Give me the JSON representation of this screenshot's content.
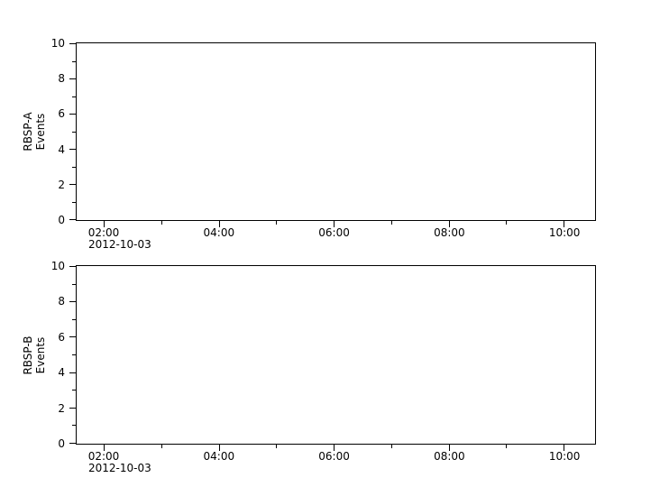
{
  "figure": {
    "background_color": "#ffffff",
    "axis_color": "#000000",
    "text_color": "#000000",
    "date_label": "2012-10-03"
  },
  "chart_data": [
    {
      "type": "line",
      "panel": "RBSP-A",
      "title": "",
      "xlabel": "",
      "ylabel": "RBSP-A Events",
      "ylabel_lines": [
        "RBSP-A",
        "Events"
      ],
      "grid": false,
      "series": [],
      "x_axis": {
        "unit": "time of day (HH:MM)",
        "min_hours": 1.53,
        "max_hours": 10.53,
        "major_ticks": [
          {
            "hours": 2,
            "label": "02:00"
          },
          {
            "hours": 4,
            "label": "04:00"
          },
          {
            "hours": 6,
            "label": "06:00"
          },
          {
            "hours": 8,
            "label": "08:00"
          },
          {
            "hours": 10,
            "label": "10:00"
          }
        ],
        "minor_tick_hours": [
          3,
          5,
          7,
          9
        ],
        "date_label": "2012-10-03",
        "date_label_under_hours": 2
      },
      "y_axis": {
        "min": 0,
        "max": 10,
        "major_ticks": [
          {
            "value": 0,
            "label": "0"
          },
          {
            "value": 2,
            "label": "2"
          },
          {
            "value": 4,
            "label": "4"
          },
          {
            "value": 6,
            "label": "6"
          },
          {
            "value": 8,
            "label": "8"
          },
          {
            "value": 10,
            "label": "10"
          }
        ],
        "minor_tick_values": [
          1,
          3,
          5,
          7,
          9
        ]
      }
    },
    {
      "type": "line",
      "panel": "RBSP-B",
      "title": "",
      "xlabel": "",
      "ylabel": "RBSP-B Events",
      "ylabel_lines": [
        "RBSP-B",
        "Events"
      ],
      "grid": false,
      "series": [],
      "x_axis": {
        "unit": "time of day (HH:MM)",
        "min_hours": 1.53,
        "max_hours": 10.53,
        "major_ticks": [
          {
            "hours": 2,
            "label": "02:00"
          },
          {
            "hours": 4,
            "label": "04:00"
          },
          {
            "hours": 6,
            "label": "06:00"
          },
          {
            "hours": 8,
            "label": "08:00"
          },
          {
            "hours": 10,
            "label": "10:00"
          }
        ],
        "minor_tick_hours": [
          3,
          5,
          7,
          9
        ],
        "date_label": "2012-10-03",
        "date_label_under_hours": 2
      },
      "y_axis": {
        "min": 0,
        "max": 10,
        "major_ticks": [
          {
            "value": 0,
            "label": "0"
          },
          {
            "value": 2,
            "label": "2"
          },
          {
            "value": 4,
            "label": "4"
          },
          {
            "value": 6,
            "label": "6"
          },
          {
            "value": 8,
            "label": "8"
          },
          {
            "value": 10,
            "label": "10"
          }
        ],
        "minor_tick_values": [
          1,
          3,
          5,
          7,
          9
        ]
      }
    }
  ]
}
